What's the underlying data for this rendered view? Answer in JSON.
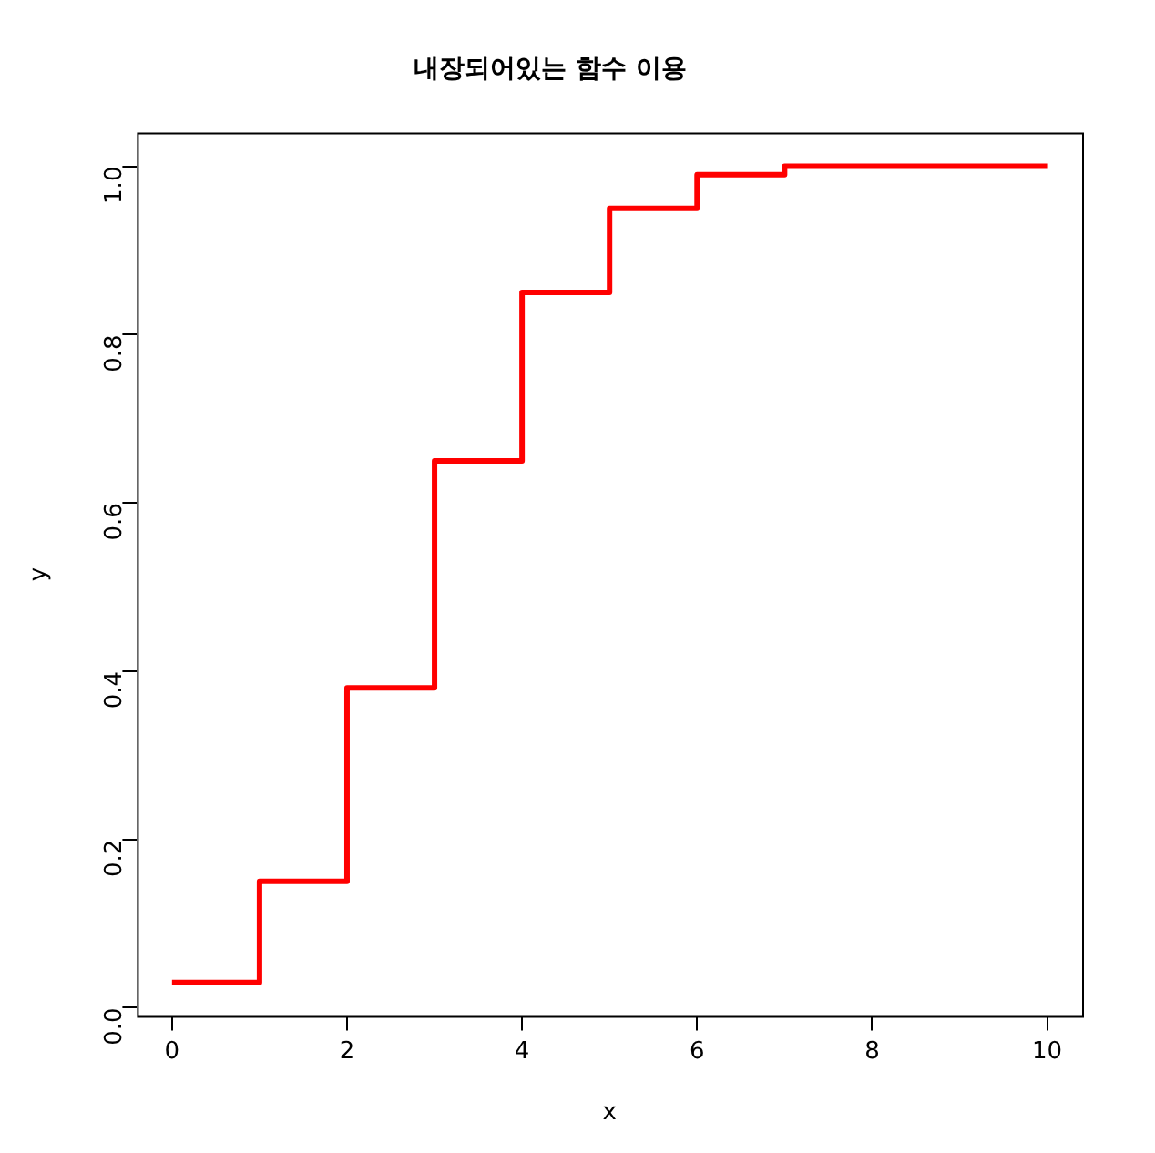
{
  "chart_data": {
    "type": "step",
    "title": "내장되어있는 함수 이용",
    "xlabel": "x",
    "ylabel": "y",
    "x": [
      0,
      1,
      2,
      3,
      4,
      5,
      6,
      7,
      8,
      9,
      10
    ],
    "values": [
      0.03,
      0.15,
      0.38,
      0.65,
      0.85,
      0.95,
      0.99,
      1.0,
      1.0,
      1.0,
      1.0
    ],
    "color": "#ff0000",
    "xlim": [
      -0.4,
      10.4
    ],
    "ylim": [
      -0.01,
      1.04
    ],
    "xticks": [
      0,
      2,
      4,
      6,
      8,
      10
    ],
    "yticks": [
      {
        "value": 0,
        "label": "0.0"
      },
      0.2,
      0.4,
      0.6,
      0.8,
      {
        "value": 1,
        "label": "1.0"
      }
    ]
  }
}
